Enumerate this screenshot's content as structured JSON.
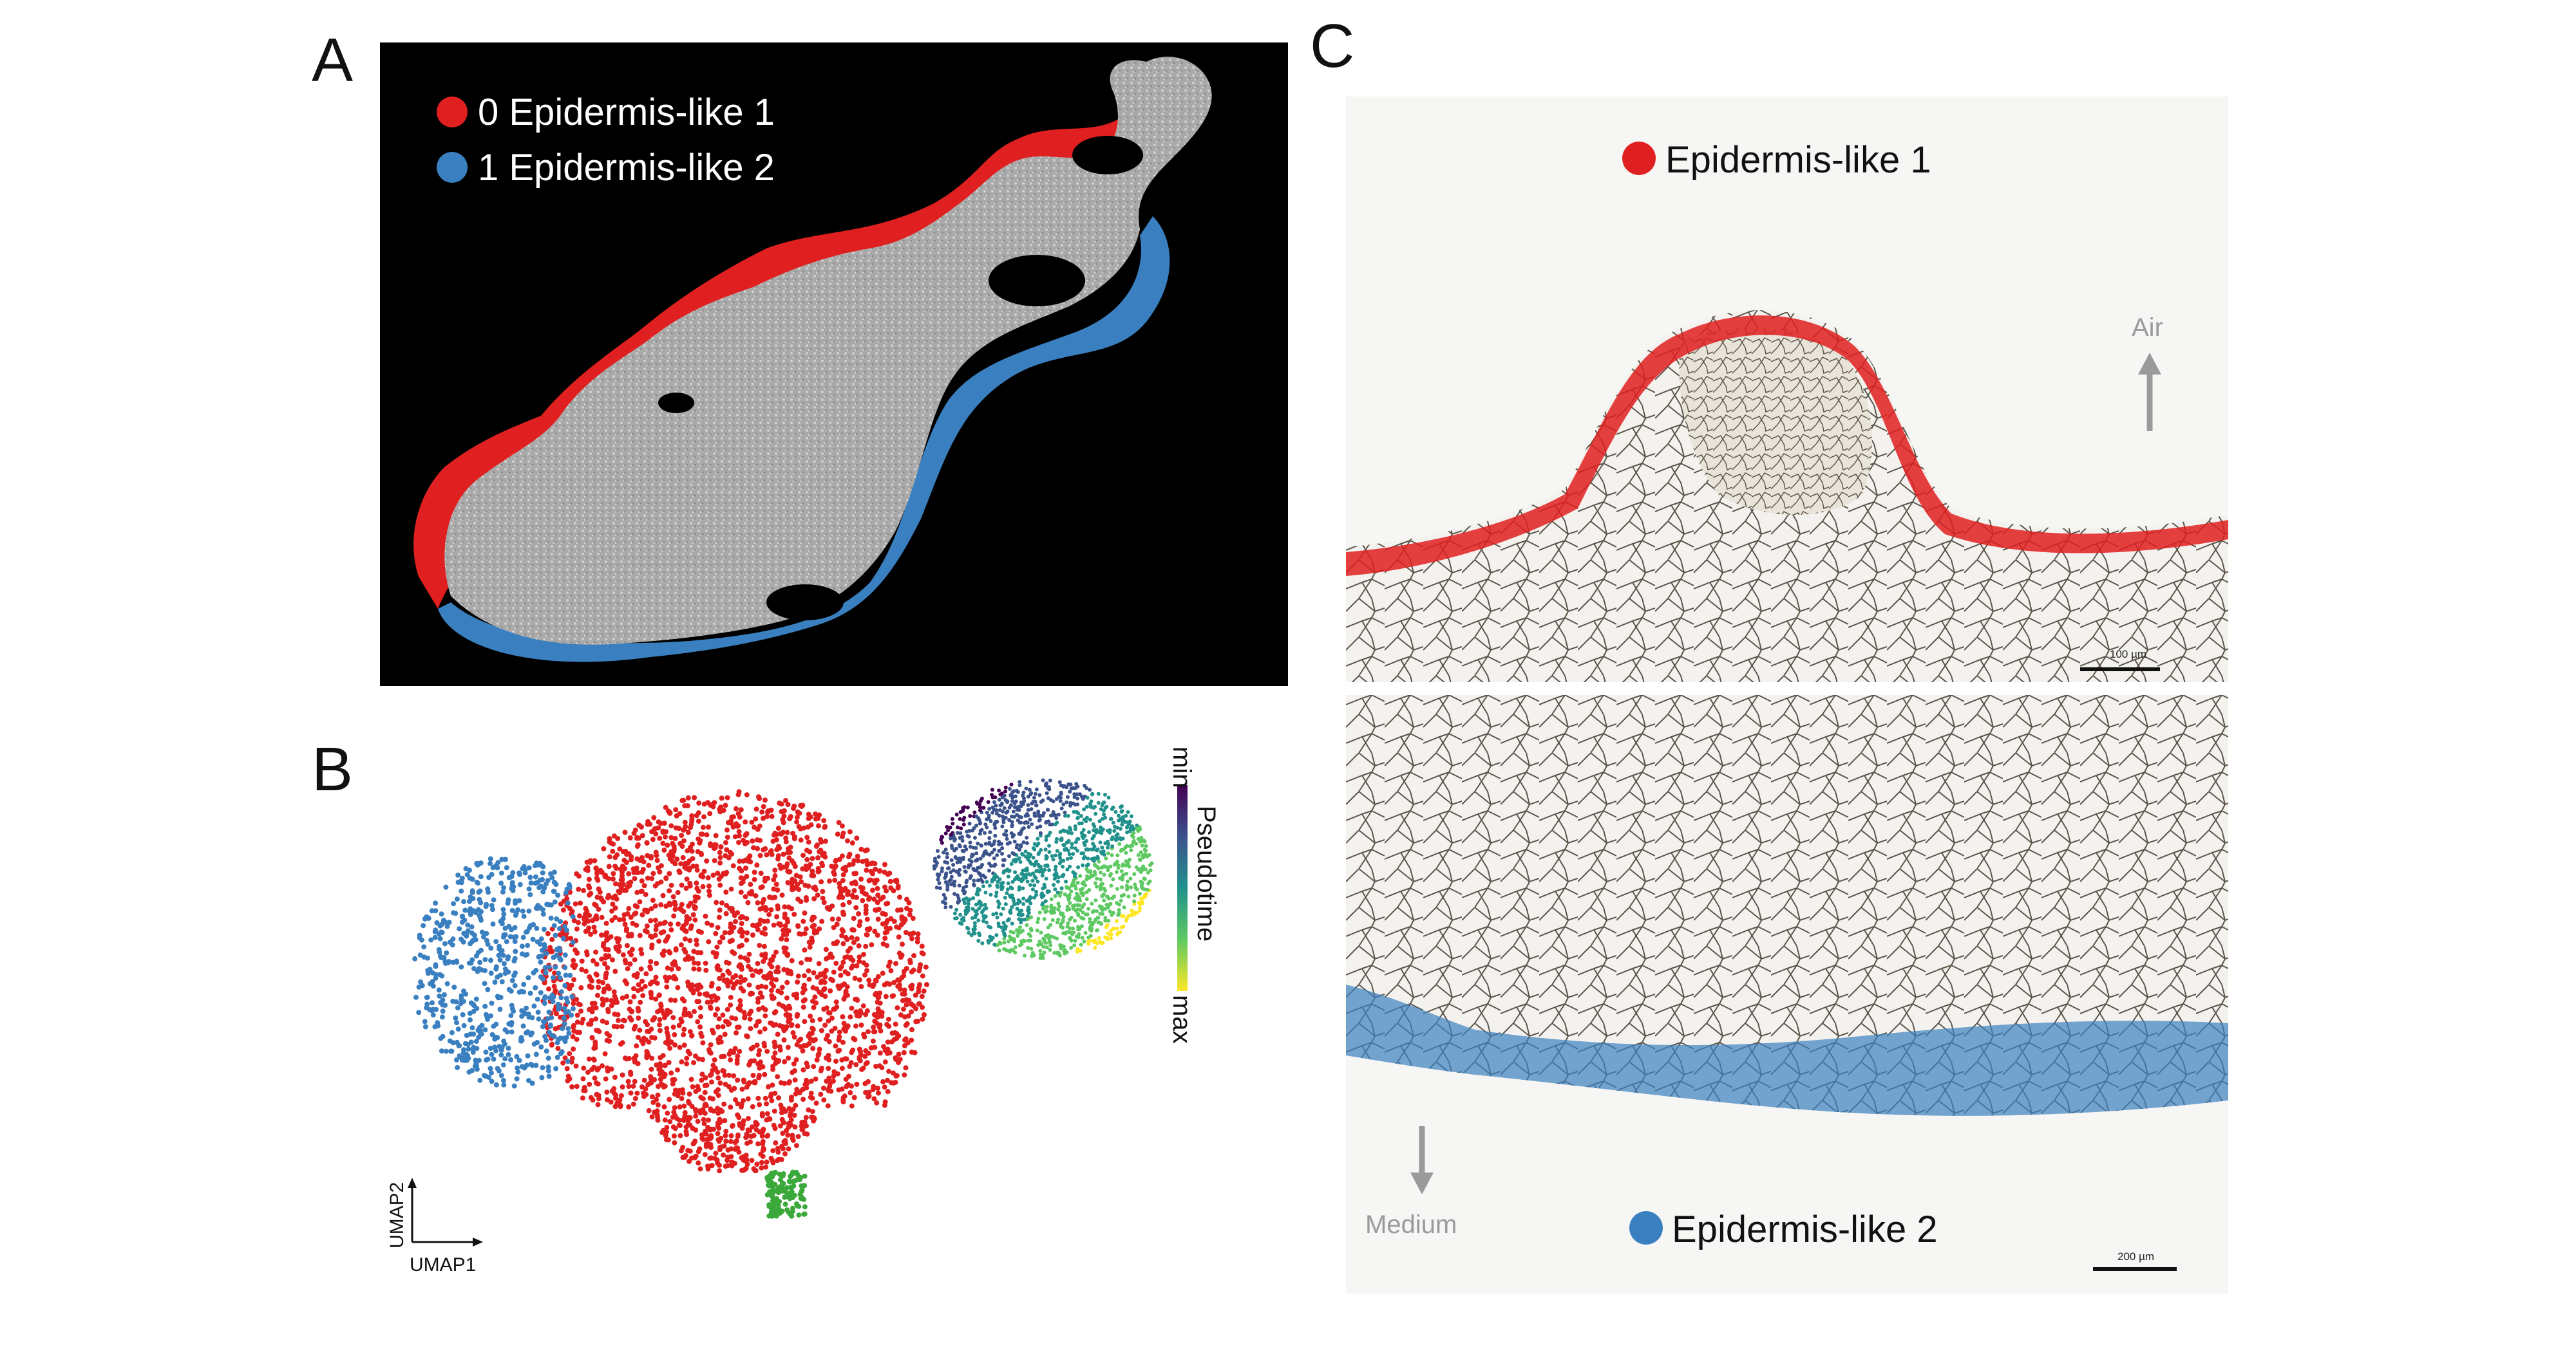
{
  "panels": {
    "a": {
      "letter": "A",
      "legend": [
        {
          "label": "0 Epidermis-like 1",
          "color": "#e02020"
        },
        {
          "label": "1 Epidermis-like 2",
          "color": "#3a80c0"
        }
      ]
    },
    "b": {
      "letter": "B",
      "umap_x_label": "UMAP1",
      "umap_y_label": "UMAP2",
      "colorbar": {
        "min_label": "min",
        "max_label": "max",
        "title": "Pseudotime"
      },
      "cluster_colors": {
        "epidermis_like_1": "#e02020",
        "epidermis_like_2": "#3a80c0",
        "other": "#3aa83a"
      }
    },
    "c": {
      "letter": "C",
      "top_label": "Epidermis-like 1",
      "bottom_label": "Epidermis-like 2",
      "air_label": "Air",
      "medium_label": "Medium",
      "scale_top": "100 µm",
      "scale_bottom": "200 µm",
      "colors": {
        "epidermis_like_1": "#e02020",
        "epidermis_like_2": "#3a80c0"
      }
    }
  }
}
